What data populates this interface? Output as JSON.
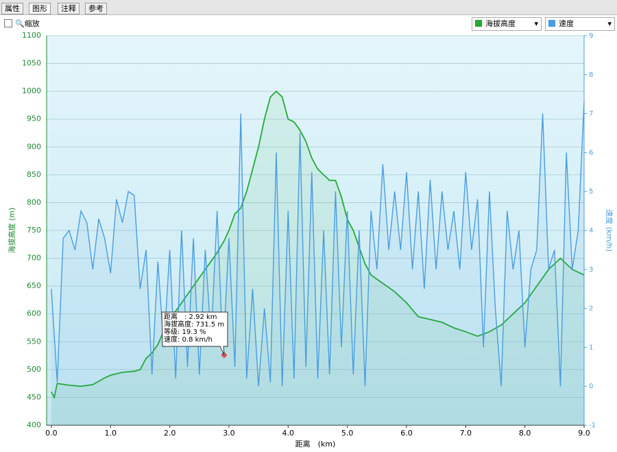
{
  "tabs": [
    "属性",
    "图形",
    "注释",
    "参考"
  ],
  "toolbar": {
    "zoom": "缩放"
  },
  "chart_data": {
    "type": "line",
    "xlabel": "距离　(km)",
    "ylabel": "海拔高度 (m)",
    "y2label": "速度 (km/h)",
    "xlim": [
      -0.08,
      9.0
    ],
    "ylim": [
      400,
      1100
    ],
    "y2lim": [
      -1,
      9
    ],
    "xticks": [
      {
        "value": 0,
        "label": "0.0"
      },
      {
        "value": 1,
        "label": "1.0"
      },
      {
        "value": 2,
        "label": "2.0"
      },
      {
        "value": 3,
        "label": "3.0"
      },
      {
        "value": 4,
        "label": "4.0"
      },
      {
        "value": 5,
        "label": "5.0"
      },
      {
        "value": 6,
        "label": "6.0"
      },
      {
        "value": 7,
        "label": "7.0"
      },
      {
        "value": 8,
        "label": "8.0"
      },
      {
        "value": 9,
        "label": "9.0"
      }
    ],
    "yticks": [
      400,
      450,
      500,
      550,
      600,
      650,
      700,
      750,
      800,
      850,
      900,
      950,
      1000,
      1050,
      1100
    ],
    "y2ticks": [
      -1,
      0,
      1,
      2,
      3,
      4,
      5,
      6,
      7,
      8,
      9
    ],
    "grid": true,
    "series": [
      {
        "name": "海拔高度",
        "color": "#22aa33",
        "axis": "y",
        "x": [
          0,
          0.05,
          0.1,
          0.3,
          0.5,
          0.7,
          0.9,
          1.0,
          1.2,
          1.4,
          1.5,
          1.6,
          1.7,
          1.8,
          1.9,
          2.0,
          2.2,
          2.4,
          2.6,
          2.8,
          2.92,
          3.0,
          3.1,
          3.2,
          3.3,
          3.4,
          3.5,
          3.6,
          3.7,
          3.8,
          3.9,
          4.0,
          4.1,
          4.2,
          4.3,
          4.4,
          4.5,
          4.6,
          4.7,
          4.8,
          4.9,
          5.0,
          5.1,
          5.2,
          5.3,
          5.4,
          5.6,
          5.8,
          6.0,
          6.2,
          6.4,
          6.6,
          6.8,
          7.0,
          7.2,
          7.4,
          7.6,
          7.8,
          8.0,
          8.2,
          8.4,
          8.6,
          8.8,
          9.0
        ],
        "values": [
          460,
          450,
          475,
          472,
          470,
          473,
          485,
          490,
          495,
          497,
          500,
          520,
          530,
          545,
          570,
          590,
          620,
          650,
          680,
          710,
          731.5,
          750,
          780,
          790,
          820,
          860,
          900,
          950,
          990,
          1000,
          990,
          950,
          945,
          930,
          910,
          880,
          860,
          850,
          840,
          840,
          810,
          770,
          750,
          720,
          690,
          670,
          655,
          640,
          620,
          595,
          590,
          585,
          575,
          568,
          560,
          568,
          580,
          600,
          620,
          650,
          680,
          700,
          680,
          670
        ]
      },
      {
        "name": "速度",
        "color": "#4a9de0",
        "axis": "y2",
        "x": [
          0,
          0.1,
          0.2,
          0.3,
          0.4,
          0.5,
          0.6,
          0.7,
          0.8,
          0.9,
          1.0,
          1.1,
          1.2,
          1.3,
          1.4,
          1.5,
          1.6,
          1.7,
          1.8,
          1.9,
          2.0,
          2.1,
          2.2,
          2.3,
          2.4,
          2.5,
          2.6,
          2.7,
          2.8,
          2.9,
          3.0,
          3.1,
          3.2,
          3.3,
          3.4,
          3.5,
          3.6,
          3.7,
          3.8,
          3.9,
          4.0,
          4.1,
          4.2,
          4.3,
          4.4,
          4.5,
          4.6,
          4.7,
          4.8,
          4.9,
          5.0,
          5.1,
          5.2,
          5.3,
          5.4,
          5.5,
          5.6,
          5.7,
          5.8,
          5.9,
          6.0,
          6.1,
          6.2,
          6.3,
          6.4,
          6.5,
          6.6,
          6.7,
          6.8,
          6.9,
          7.0,
          7.1,
          7.2,
          7.3,
          7.4,
          7.5,
          7.6,
          7.7,
          7.8,
          7.9,
          8.0,
          8.1,
          8.2,
          8.3,
          8.4,
          8.5,
          8.6,
          8.7,
          8.8,
          8.9,
          9.0
        ],
        "values": [
          2.5,
          0.1,
          3.8,
          4.0,
          3.5,
          4.5,
          4.2,
          3.0,
          4.3,
          3.8,
          2.9,
          4.8,
          4.2,
          5.0,
          4.9,
          2.5,
          3.5,
          0.3,
          3.2,
          1.0,
          3.5,
          0.2,
          4.0,
          0.5,
          3.8,
          0.3,
          3.5,
          1.2,
          4.5,
          0.8,
          3.8,
          0.5,
          7.0,
          0.2,
          2.5,
          0.0,
          2.0,
          0.1,
          6.0,
          0.0,
          4.5,
          0.2,
          6.5,
          0.5,
          5.5,
          0.2,
          4.0,
          0.3,
          5.0,
          1.0,
          4.5,
          0.3,
          4.0,
          0.0,
          4.5,
          3.0,
          5.7,
          3.5,
          5.0,
          3.5,
          5.5,
          3.0,
          5.0,
          2.5,
          5.3,
          3.0,
          5.0,
          3.5,
          4.5,
          3.0,
          5.5,
          3.5,
          4.8,
          1.0,
          5.0,
          2.0,
          0.0,
          4.5,
          3.0,
          4.0,
          1.0,
          3.0,
          3.5,
          7.0,
          3.0,
          3.5,
          0.0,
          6.0,
          3.0,
          4.0,
          7.3
        ]
      }
    ],
    "tooltip": {
      "lines": [
        "距离　: 2.92 km",
        "海拔高度: 731.5 m",
        "等级: 19.3 %",
        "速度: 0.8 km/h"
      ],
      "x": 2.92,
      "y2": 0.8
    }
  }
}
